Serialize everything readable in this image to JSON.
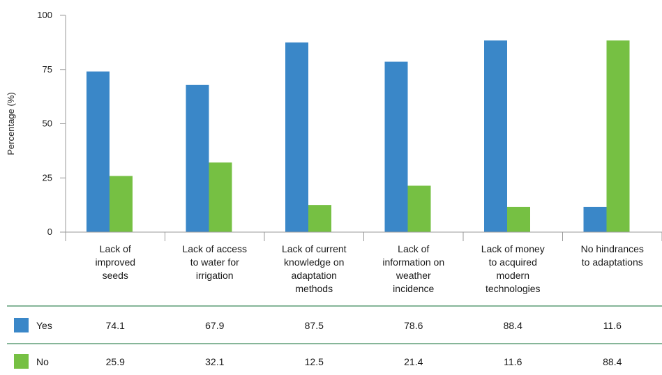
{
  "chart_data": {
    "type": "bar",
    "ylabel": "Percentage (%)",
    "ylim": [
      0,
      100
    ],
    "yticks": [
      "0",
      "25",
      "50",
      "75",
      "100"
    ],
    "grid": false,
    "categories": [
      [
        "Lack of",
        "improved",
        "seeds"
      ],
      [
        "Lack of access",
        "to water for",
        "irrigation"
      ],
      [
        "Lack of current",
        "knowledge on",
        "adaptation",
        "methods"
      ],
      [
        "Lack of",
        "information on",
        "weather",
        "incidence"
      ],
      [
        "Lack of money",
        "to acquired",
        "modern",
        "technologies"
      ],
      [
        "No hindrances",
        "to adaptations"
      ]
    ],
    "series": [
      {
        "name": "Yes",
        "color": "#3a87c8",
        "values": [
          74.1,
          67.9,
          87.5,
          78.6,
          88.4,
          11.6
        ],
        "labels": [
          "74.1",
          "67.9",
          "87.5",
          "78.6",
          "88.4",
          "11.6"
        ]
      },
      {
        "name": "No",
        "color": "#76c043",
        "values": [
          25.9,
          32.1,
          12.5,
          21.4,
          11.6,
          88.4
        ],
        "labels": [
          "25.9",
          "32.1",
          "12.5",
          "21.4",
          "11.6",
          "88.4"
        ]
      }
    ],
    "data_table": true
  },
  "colors": {
    "axis": "#9a9a9a",
    "table_rule": "#3d8a5c"
  }
}
